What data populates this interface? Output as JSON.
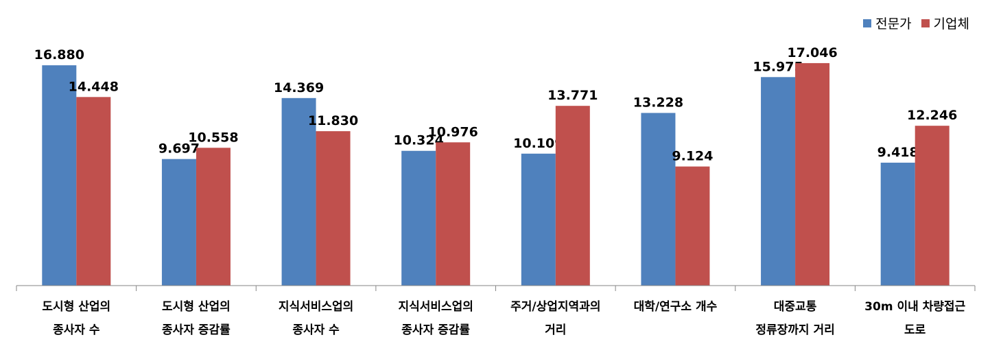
{
  "colors": {
    "expert": "#4f81bd",
    "company": "#c0504d",
    "axis": "#868686"
  },
  "chart_data": {
    "type": "bar",
    "categories": [
      [
        "도시형 산업의",
        "종사자 수"
      ],
      [
        "도시형 산업의",
        "종사자 증감률"
      ],
      [
        "지식서비스업의",
        "종사자 수"
      ],
      [
        "지식서비스업의",
        "종사자 증감률"
      ],
      [
        "주거/상업지역과의",
        "거리"
      ],
      [
        "대학/연구소 개수"
      ],
      [
        "대중교통",
        "정류장까지 거리"
      ],
      [
        "30m 이내 차량접근",
        "도로"
      ]
    ],
    "series": [
      {
        "name": "전문가",
        "values": [
          16.88,
          9.697,
          14.369,
          10.324,
          10.109,
          13.228,
          15.975,
          9.418
        ],
        "labels": [
          "16.880",
          "9.697",
          "14.369",
          "10.324",
          "10.109",
          "13.228",
          "15.975",
          "9.418"
        ]
      },
      {
        "name": "기업체",
        "values": [
          14.448,
          10.558,
          11.83,
          10.976,
          13.771,
          9.124,
          17.046,
          12.246
        ],
        "labels": [
          "14.448",
          "10.558",
          "11.830",
          "10.976",
          "13.771",
          "9.124",
          "17.046",
          "12.246"
        ]
      }
    ],
    "ylim": [
      0,
      17.2
    ],
    "grid": false,
    "legend_position": "top-right"
  }
}
